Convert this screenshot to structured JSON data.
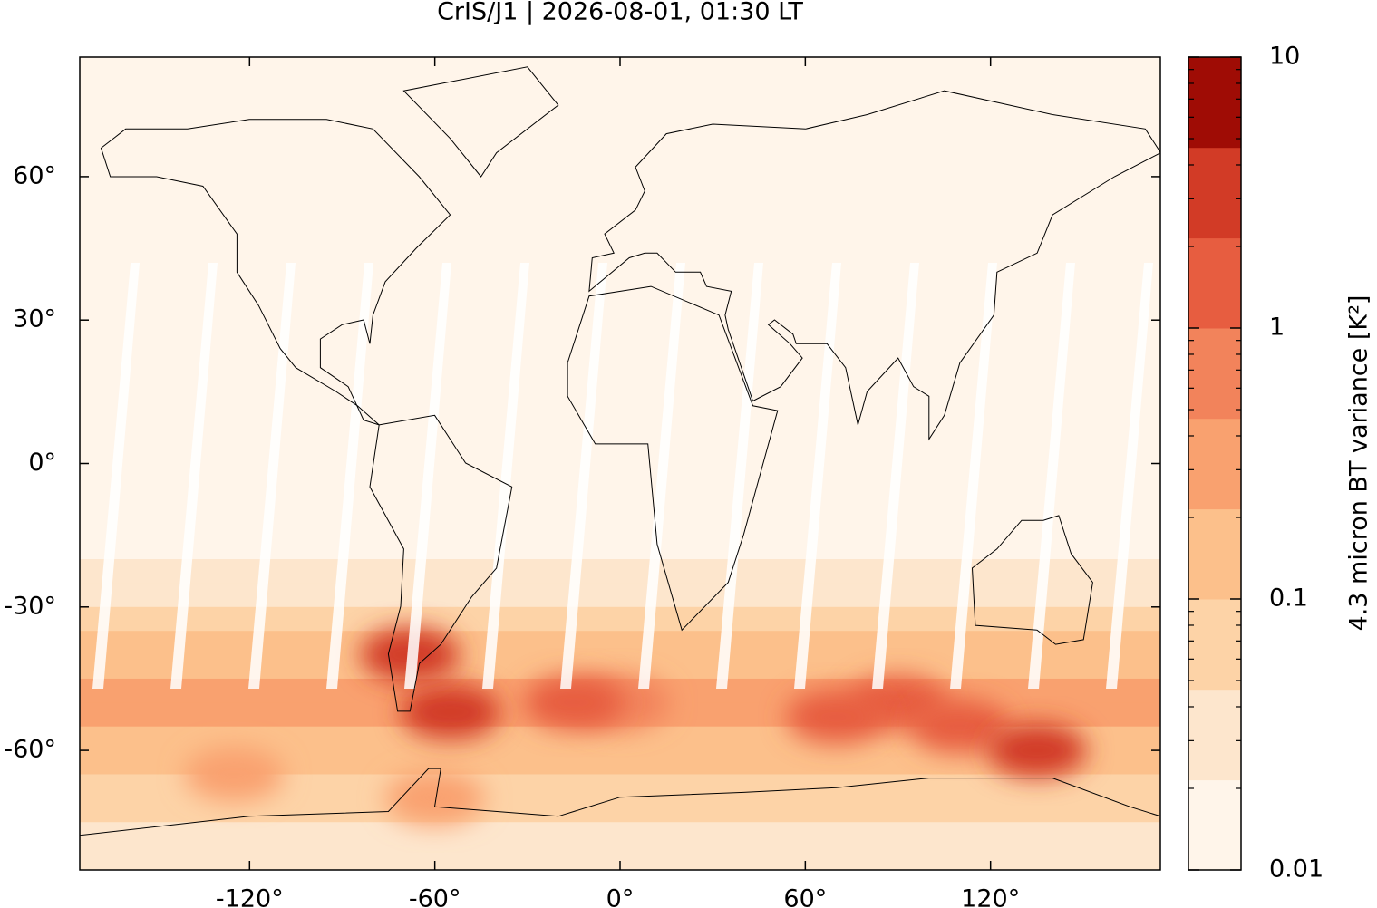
{
  "chart_data": {
    "type": "map",
    "title": "CrIS/J1 | 2026-08-01, 01:30 LT",
    "xlim": [
      -175,
      175
    ],
    "ylim": [
      -85,
      85
    ],
    "xticks": [
      {
        "value": -120,
        "label": "-120°"
      },
      {
        "value": -60,
        "label": "-60°"
      },
      {
        "value": 0,
        "label": "0°"
      },
      {
        "value": 60,
        "label": "60°"
      },
      {
        "value": 120,
        "label": "120°"
      }
    ],
    "yticks": [
      {
        "value": -60,
        "label": "-60°"
      },
      {
        "value": -30,
        "label": "-30°"
      },
      {
        "value": 0,
        "label": "0°"
      },
      {
        "value": 30,
        "label": "30°"
      },
      {
        "value": 60,
        "label": "60°"
      }
    ],
    "zonal_lat": [
      82.5,
      77.5,
      72.5,
      67.5,
      62.5,
      57.5,
      52.5,
      47.5,
      42.5,
      37.5,
      32.5,
      27.5,
      22.5,
      17.5,
      12.5,
      7.5,
      2.5,
      -2.5,
      -7.5,
      -12.5,
      -17.5,
      -22.5,
      -27.5,
      -32.5,
      -37.5,
      -42.5,
      -47.5,
      -52.5,
      -57.5,
      -62.5,
      -67.5,
      -72.5,
      -77.5,
      -82.5
    ],
    "zonal_values": [
      0.012,
      0.012,
      0.012,
      0.012,
      0.012,
      0.012,
      0.012,
      0.012,
      0.012,
      0.015,
      0.015,
      0.02,
      0.02,
      0.02,
      0.02,
      0.02,
      0.02,
      0.02,
      0.02,
      0.02,
      0.02,
      0.03,
      0.04,
      0.06,
      0.1,
      0.18,
      0.3,
      0.35,
      0.2,
      0.12,
      0.07,
      0.05,
      0.04,
      0.03
    ],
    "hotspots": [
      {
        "lon": -125,
        "lat": -65,
        "value": 0.3
      },
      {
        "lon": -60,
        "lat": -70,
        "value": 0.3
      },
      {
        "lon": 0,
        "lat": -50,
        "value": 0.9
      },
      {
        "lon": -15,
        "lat": -50,
        "value": 1.2
      },
      {
        "lon": 90,
        "lat": -50,
        "value": 1.2
      },
      {
        "lon": 70,
        "lat": -53,
        "value": 1.5
      },
      {
        "lon": 110,
        "lat": -55,
        "value": 1.5
      },
      {
        "lon": -55,
        "lat": -52,
        "value": 2.5
      },
      {
        "lon": 135,
        "lat": -60,
        "value": 2.5
      },
      {
        "lon": -68,
        "lat": -40,
        "value": 3.5
      }
    ],
    "colorbar": {
      "label": "4.3 micron BT variance [K²]",
      "log": true,
      "lim": [
        0.01,
        10
      ],
      "ticks": [
        0.01,
        0.1,
        1,
        10
      ],
      "minor_ticks": [
        0.02,
        0.03,
        0.04,
        0.05,
        0.06,
        0.07,
        0.08,
        0.09,
        0.2,
        0.3,
        0.4,
        0.5,
        0.6,
        0.7,
        0.8,
        0.9,
        2,
        3,
        4,
        5,
        6,
        7,
        8,
        9
      ],
      "levels": [
        0.01,
        0.0215,
        0.0464,
        0.1,
        0.215,
        0.464,
        1,
        2.15,
        4.64,
        10
      ],
      "colors": [
        "#fff5ea",
        "#fde6cd",
        "#fdd3a7",
        "#fcc08b",
        "#f9a16f",
        "#f2835b",
        "#e75d40",
        "#d23b26",
        "#9f0c05"
      ]
    }
  }
}
